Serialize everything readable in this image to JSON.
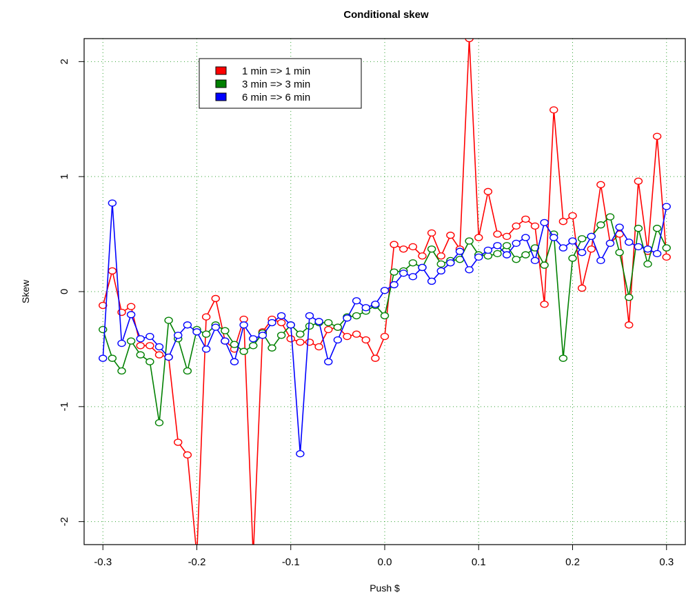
{
  "chart_data": {
    "type": "line",
    "title": "Conditional skew",
    "xlabel": "Push $",
    "ylabel": "Skew",
    "xlim": [
      -0.32,
      0.32
    ],
    "ylim": [
      -2.2,
      2.2
    ],
    "x_ticks": [
      -0.3,
      -0.2,
      -0.1,
      0.0,
      0.1,
      0.2,
      0.3
    ],
    "x_tick_labels": [
      "-0.3",
      "-0.2",
      "-0.1",
      "0.0",
      "0.1",
      "0.2",
      "0.3"
    ],
    "y_ticks": [
      -2,
      -1,
      0,
      1,
      2
    ],
    "y_tick_labels": [
      "-2",
      "-1",
      "0",
      "1",
      "2"
    ],
    "grid": true,
    "legend_position": "top-left",
    "markers": "open-circle",
    "x": [
      -0.3,
      -0.29,
      -0.28,
      -0.27,
      -0.26,
      -0.25,
      -0.24,
      -0.23,
      -0.22,
      -0.21,
      -0.2,
      -0.19,
      -0.18,
      -0.17,
      -0.16,
      -0.15,
      -0.14,
      -0.13,
      -0.12,
      -0.11,
      -0.1,
      -0.09,
      -0.08,
      -0.07,
      -0.06,
      -0.05,
      -0.04,
      -0.03,
      -0.02,
      -0.01,
      0.0,
      0.01,
      0.02,
      0.03,
      0.04,
      0.05,
      0.06,
      0.07,
      0.08,
      0.09,
      0.1,
      0.11,
      0.12,
      0.13,
      0.14,
      0.15,
      0.16,
      0.17,
      0.18,
      0.19,
      0.2,
      0.21,
      0.22,
      0.23,
      0.24,
      0.25,
      0.26,
      0.27,
      0.28,
      0.29,
      0.3
    ],
    "series": [
      {
        "name": "1 min => 1 min",
        "color": "#ff0000",
        "values": [
          -0.12,
          0.18,
          -0.18,
          -0.13,
          -0.47,
          -0.47,
          -0.55,
          -0.57,
          -1.31,
          -1.42,
          -2.3,
          -0.22,
          -0.06,
          -0.43,
          -0.5,
          -0.24,
          -2.3,
          -0.35,
          -0.24,
          -0.27,
          -0.41,
          -0.44,
          -0.44,
          -0.48,
          -0.33,
          -0.31,
          -0.39,
          -0.37,
          -0.42,
          -0.58,
          -0.39,
          0.41,
          0.37,
          0.39,
          0.31,
          0.51,
          0.31,
          0.49,
          0.37,
          2.2,
          0.47,
          0.87,
          0.5,
          0.48,
          0.57,
          0.63,
          0.57,
          -0.11,
          1.58,
          0.61,
          0.66,
          0.03,
          0.37,
          0.93,
          0.42,
          0.5,
          -0.29,
          0.96,
          0.35,
          1.35,
          0.3
        ]
      },
      {
        "name": "3 min => 3 min",
        "color": "#008000",
        "values": [
          -0.33,
          -0.58,
          -0.69,
          -0.43,
          -0.55,
          -0.61,
          -1.14,
          -0.25,
          -0.41,
          -0.69,
          -0.33,
          -0.37,
          -0.29,
          -0.34,
          -0.46,
          -0.52,
          -0.47,
          -0.36,
          -0.49,
          -0.38,
          -0.29,
          -0.37,
          -0.3,
          -0.27,
          -0.27,
          -0.31,
          -0.22,
          -0.21,
          -0.17,
          -0.12,
          -0.21,
          0.17,
          0.18,
          0.25,
          0.21,
          0.37,
          0.24,
          0.27,
          0.28,
          0.44,
          0.32,
          0.31,
          0.33,
          0.4,
          0.28,
          0.32,
          0.38,
          0.23,
          0.5,
          -0.58,
          0.29,
          0.46,
          0.48,
          0.58,
          0.65,
          0.34,
          -0.05,
          0.55,
          0.24,
          0.55,
          0.38
        ]
      },
      {
        "name": "6 min => 6 min",
        "color": "#0000ff",
        "values": [
          -0.58,
          0.77,
          -0.45,
          -0.2,
          -0.41,
          -0.39,
          -0.48,
          -0.57,
          -0.38,
          -0.29,
          -0.35,
          -0.5,
          -0.31,
          -0.43,
          -0.61,
          -0.29,
          -0.41,
          -0.38,
          -0.27,
          -0.21,
          -0.29,
          -1.41,
          -0.21,
          -0.26,
          -0.61,
          -0.42,
          -0.23,
          -0.08,
          -0.14,
          -0.11,
          0.01,
          0.06,
          0.16,
          0.13,
          0.21,
          0.09,
          0.18,
          0.25,
          0.35,
          0.19,
          0.3,
          0.36,
          0.4,
          0.32,
          0.42,
          0.47,
          0.27,
          0.6,
          0.47,
          0.38,
          0.44,
          0.34,
          0.48,
          0.27,
          0.42,
          0.56,
          0.43,
          0.39,
          0.37,
          0.33,
          0.74
        ]
      }
    ]
  }
}
